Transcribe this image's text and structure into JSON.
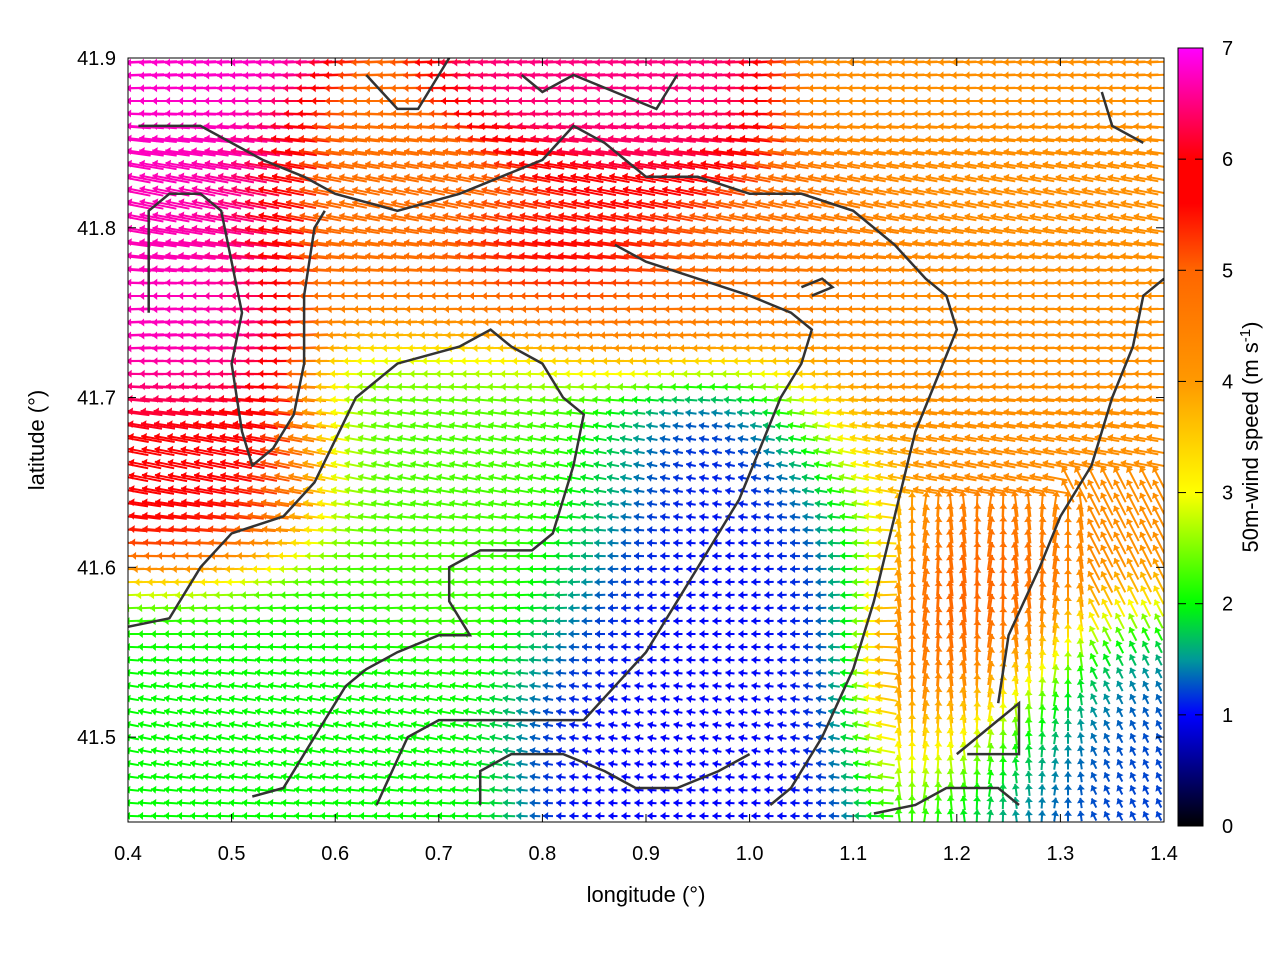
{
  "chart_data": {
    "type": "vector-field",
    "xlabel": "longitude (°)",
    "ylabel": "latitude (°)",
    "xlim": [
      0.4,
      1.4
    ],
    "ylim": [
      41.45,
      41.9
    ],
    "x_ticks": [
      "0.4",
      "0.5",
      "0.6",
      "0.7",
      "0.8",
      "0.9",
      "1.0",
      "1.1",
      "1.2",
      "1.3",
      "1.4"
    ],
    "y_ticks": [
      "41.5",
      "41.6",
      "41.7",
      "41.8",
      "41.9"
    ],
    "colorbar": {
      "label_main": "50m-wind speed (m s",
      "label_sup": "-1",
      "label_end": ")",
      "range": [
        0,
        7
      ],
      "ticks": [
        "0",
        "1",
        "2",
        "3",
        "4",
        "5",
        "6",
        "7"
      ],
      "colors": [
        "#000000",
        "#0000ff",
        "#00b3b3",
        "#00ff00",
        "#ffff00",
        "#ff9900",
        "#ff0000",
        "#ff00ff"
      ]
    },
    "contour_color": "#333333",
    "speed_zones_description_free": true,
    "wind_direction": "mostly westward (from east)",
    "speed_regions": [
      {
        "lon": [
          0.4,
          0.52
        ],
        "lat": [
          41.66,
          41.82
        ],
        "speed": 6.8
      },
      {
        "lon": [
          0.4,
          0.55
        ],
        "lat": [
          41.62,
          41.7
        ],
        "speed": 5.5
      },
      {
        "lon": [
          0.6,
          1.1
        ],
        "lat": [
          41.74,
          41.82
        ],
        "speed": 4.8
      },
      {
        "lon": [
          0.82,
          0.95
        ],
        "lat": [
          41.82,
          41.89
        ],
        "speed": 6.5
      },
      {
        "lon": [
          0.75,
          0.9
        ],
        "lat": [
          41.77,
          41.8
        ],
        "speed": 6.3
      },
      {
        "lon": [
          1.1,
          1.4
        ],
        "lat": [
          41.6,
          41.85
        ],
        "speed": 4.2
      },
      {
        "lon": [
          1.15,
          1.28
        ],
        "lat": [
          41.5,
          41.62
        ],
        "speed": 5.4
      },
      {
        "lon": [
          0.85,
          1.1
        ],
        "lat": [
          41.5,
          41.68
        ],
        "speed": 1.0
      },
      {
        "lon": [
          0.6,
          0.85
        ],
        "lat": [
          41.58,
          41.72
        ],
        "speed": 2.3
      },
      {
        "lon": [
          0.4,
          0.65
        ],
        "lat": [
          41.45,
          41.58
        ],
        "speed": 2.0
      },
      {
        "lon": [
          1.2,
          1.4
        ],
        "lat": [
          41.45,
          41.55
        ],
        "speed": 1.2
      }
    ]
  }
}
